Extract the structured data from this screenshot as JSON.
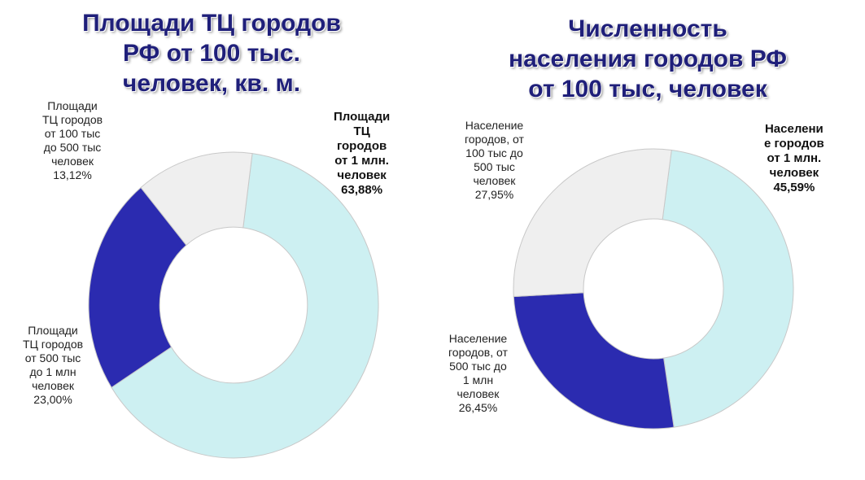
{
  "chart_data": [
    {
      "type": "pie",
      "title_lines": [
        "Площади ТЦ городов",
        "РФ от 100 тыс.",
        "человек, кв. м."
      ],
      "slices": [
        {
          "label_lines": [
            "Площади",
            "ТЦ",
            "городов",
            "от 1 млн.",
            "человек"
          ],
          "value_text": "63,88%",
          "value": 63.88,
          "color": "#cdf0f2"
        },
        {
          "label_lines": [
            "Площади",
            "ТЦ городов",
            "от 500 тыс",
            "до 1 млн",
            "человек"
          ],
          "value_text": "23,00%",
          "value": 23.0,
          "color": "#2b2bb0"
        },
        {
          "label_lines": [
            "Площади",
            "ТЦ городов",
            "от 100 тыс",
            "до 500  тыс",
            "человек"
          ],
          "value_text": "13,12%",
          "value": 13.12,
          "color": "#efefef"
        }
      ]
    },
    {
      "type": "pie",
      "title_lines": [
        "Численность",
        "населения городов РФ",
        "от 100 тыс, человек"
      ],
      "slices": [
        {
          "label_lines": [
            "Населени",
            "е городов",
            "от 1 млн.",
            "человек"
          ],
          "value_text": "45,59%",
          "value": 45.59,
          "color": "#cdf0f2"
        },
        {
          "label_lines": [
            "Население",
            "городов, от",
            "500 тыс до",
            "1 млн",
            "человек"
          ],
          "value_text": "26,45%",
          "value": 26.45,
          "color": "#2b2bb0"
        },
        {
          "label_lines": [
            "Население",
            "городов, от",
            "100 тыс до",
            "500  тыс",
            "человек"
          ],
          "value_text": "27,95%",
          "value": 27.95,
          "color": "#efefef"
        }
      ]
    }
  ]
}
